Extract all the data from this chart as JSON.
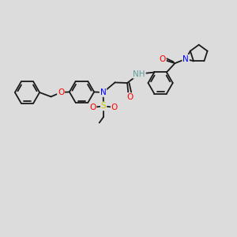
{
  "background_color": "#dcdcdc",
  "bond_color": "#1a1a1a",
  "atom_colors": {
    "N": "#0000ff",
    "O": "#ff0000",
    "S": "#cccc00",
    "H": "#5f9ea0",
    "C": "#1a1a1a"
  },
  "font_size_atom": 7.5,
  "line_width": 1.3,
  "figsize": [
    3.0,
    3.0
  ],
  "dpi": 100
}
